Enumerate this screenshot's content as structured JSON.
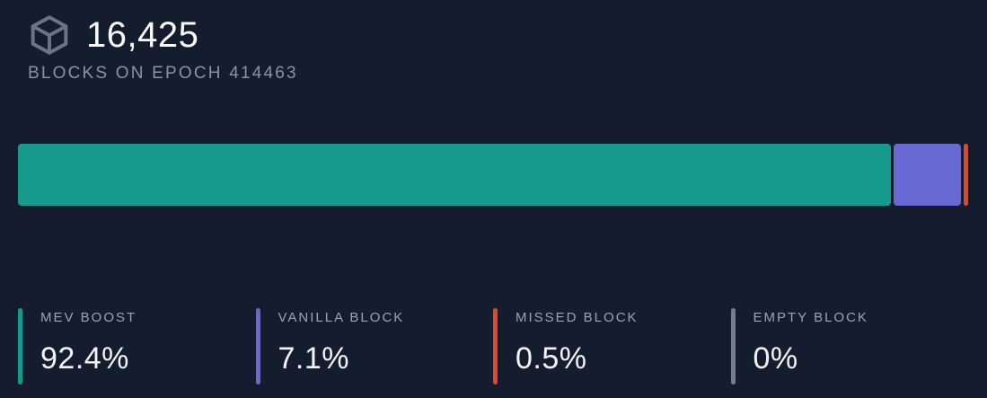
{
  "header": {
    "blocks_count": "16,425",
    "subtitle": "BLOCKS ON EPOCH 414463",
    "icon": "cube-icon"
  },
  "colors": {
    "background": "#151c2e",
    "value_text": "#f2f4f8",
    "muted_text": "#8a92a4",
    "label_text": "#9aa3b3",
    "icon": "#6c7384",
    "mev_boost": "#169a8c",
    "vanilla_block": "#6868d2",
    "missed_block": "#e0472b",
    "empty_block": "#757c8a"
  },
  "chart_data": {
    "type": "bar",
    "variant": "horizontal-stacked-percentage",
    "title": "16,425 blocks on epoch 414463",
    "categories": [
      "MEV BOOST",
      "VANILLA BLOCK",
      "MISSED BLOCK",
      "EMPTY BLOCK"
    ],
    "values": [
      92.4,
      7.1,
      0.5,
      0
    ],
    "display_values": [
      "92.4%",
      "7.1%",
      "0.5%",
      "0%"
    ],
    "colors": [
      "#169a8c",
      "#6868d2",
      "#e0472b",
      "#757c8a"
    ],
    "unit": "%",
    "xlim": [
      0,
      100
    ],
    "grid": false,
    "legend_position": "bottom",
    "total_blocks": "16,425",
    "epoch": "414463"
  },
  "legend": {
    "items": [
      {
        "label": "MEV BOOST",
        "value": "92.4%",
        "color": "#169a8c"
      },
      {
        "label": "VANILLA BLOCK",
        "value": "7.1%",
        "color": "#6868d2"
      },
      {
        "label": "MISSED BLOCK",
        "value": "0.5%",
        "color": "#e0472b"
      },
      {
        "label": "EMPTY BLOCK",
        "value": "0%",
        "color": "#757c8a"
      }
    ]
  }
}
